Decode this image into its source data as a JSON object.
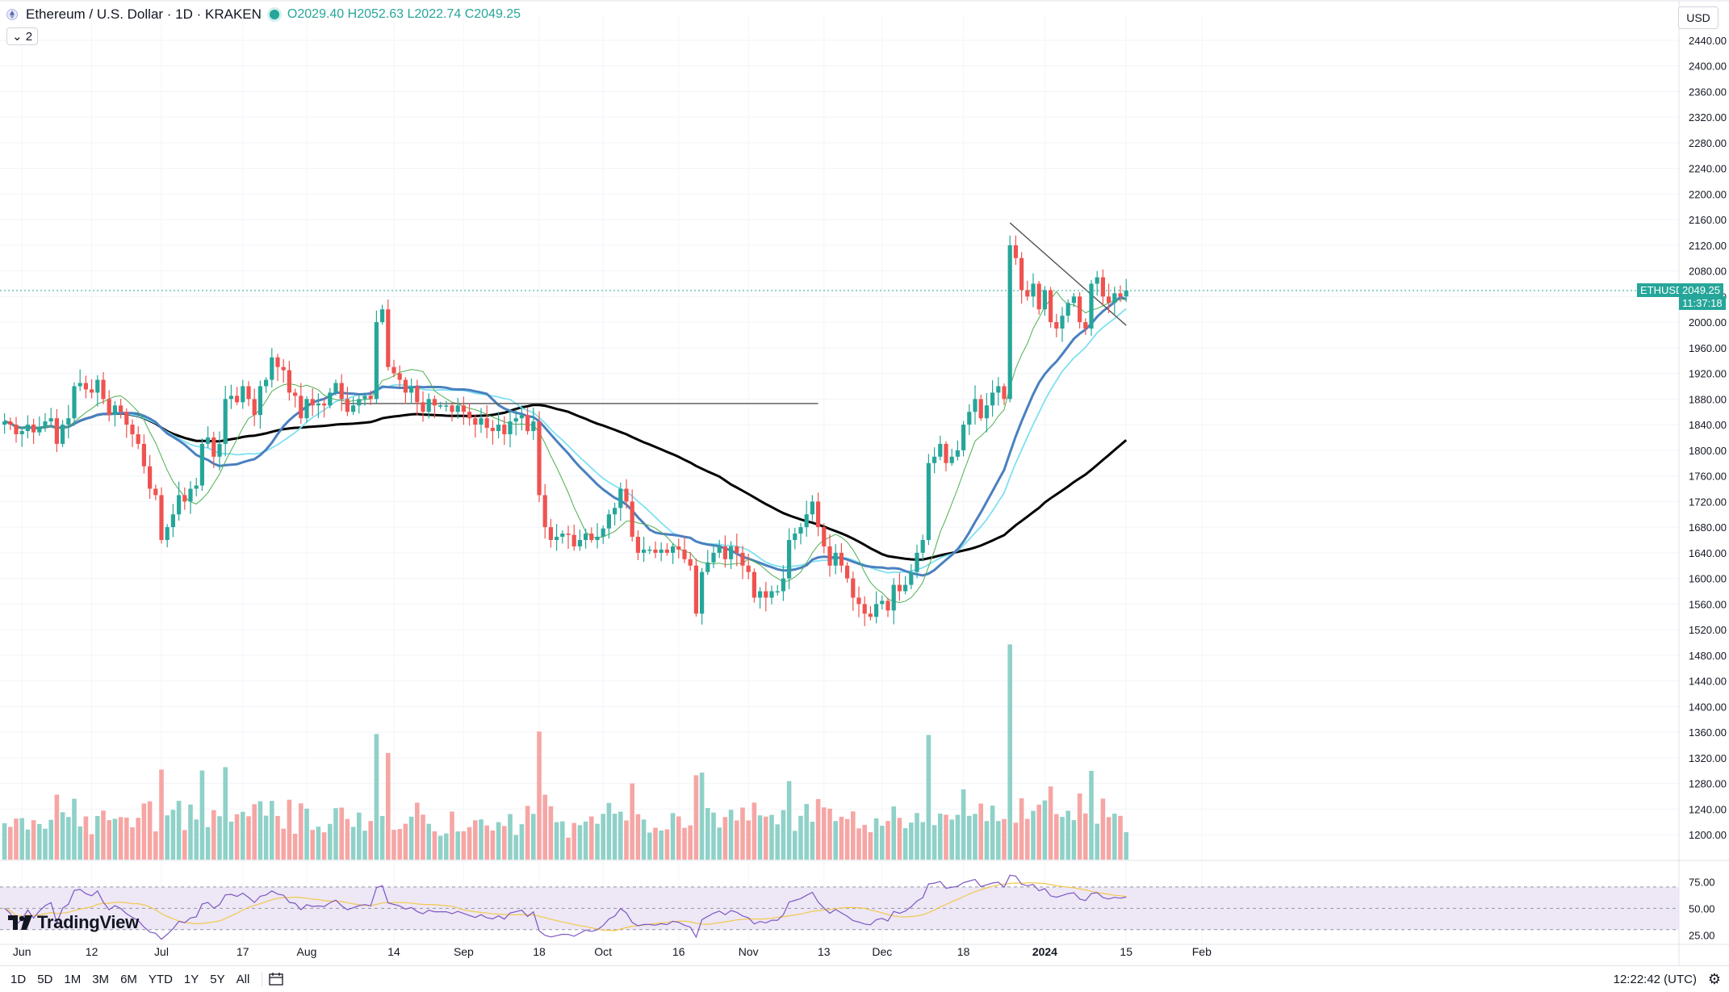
{
  "header": {
    "symbol_title": "Ethereum / U.S. Dollar · 1D · KRAKEN",
    "open": "O2029.40",
    "high": "H2052.63",
    "low": "L2022.74",
    "close": "C2049.25",
    "indicator_toggle": "2",
    "currency": "USD"
  },
  "price_tags": {
    "symbol": "ETHUSD",
    "last_price": "2049.25",
    "countdown": "11:37:18"
  },
  "bottom_bar": {
    "ranges": [
      "1D",
      "5D",
      "1M",
      "3M",
      "6M",
      "YTD",
      "1Y",
      "5Y",
      "All"
    ],
    "clock": "12:22:42 (UTC)"
  },
  "logo": "TradingView",
  "colors": {
    "up": "#26a69a",
    "down": "#ef5350",
    "vol_up": "#8fd1c8",
    "vol_down": "#f5a6a4",
    "ma_fast": "#4caf50",
    "ma_mid": "#4a80c0",
    "ma_cyan": "#7fe0f0",
    "ma_slow": "#000000",
    "rsi": "#7e57c2",
    "rsi_ma": "#f2c94c",
    "rsi_band": "#ede7f6"
  },
  "chart_data": [
    {
      "type": "candlestick",
      "symbol": "ETHUSD",
      "interval": "1D",
      "y_axis_ticks": [
        1200,
        1240,
        1280,
        1320,
        1360,
        1400,
        1440,
        1480,
        1520,
        1560,
        1600,
        1640,
        1680,
        1720,
        1760,
        1800,
        1840,
        1880,
        1920,
        1960,
        2000,
        2040,
        2080,
        2120,
        2160,
        2200,
        2240,
        2280,
        2320,
        2360,
        2400,
        2440
      ],
      "y_axis_labels": [
        "1200.00",
        "1240.00",
        "1280.00",
        "1320.00",
        "1360.00",
        "1400.00",
        "1440.00",
        "1480.00",
        "1520.00",
        "1560.00",
        "1600.00",
        "1640.00",
        "1680.00",
        "1720.00",
        "1760.00",
        "1800.00",
        "1840.00",
        "1880.00",
        "1920.00",
        "1960.00",
        "2000.00",
        "2040.00",
        "2080.00",
        "2120.00",
        "2160.00",
        "2200.00",
        "2240.00",
        "2280.00",
        "2320.00",
        "2360.00",
        "2400.00",
        "2440.00"
      ],
      "ylim": [
        1180,
        2465
      ],
      "x_axis_labels": [
        "Jun",
        "12",
        "Jul",
        "17",
        "Aug",
        "14",
        "Sep",
        "18",
        "Oct",
        "16",
        "Nov",
        "13",
        "Dec",
        "18",
        "2024",
        "15",
        "Feb"
      ],
      "x_axis_label_bars": [
        3,
        15,
        27,
        41,
        52,
        67,
        79,
        92,
        103,
        116,
        128,
        141,
        151,
        165,
        179,
        193,
        206
      ],
      "last_price": 2049.25,
      "close": [
        1845,
        1840,
        1825,
        1830,
        1840,
        1828,
        1837,
        1845,
        1850,
        1810,
        1840,
        1850,
        1900,
        1905,
        1895,
        1890,
        1910,
        1880,
        1855,
        1870,
        1860,
        1840,
        1825,
        1810,
        1775,
        1740,
        1730,
        1660,
        1680,
        1700,
        1730,
        1720,
        1740,
        1745,
        1810,
        1820,
        1790,
        1810,
        1880,
        1885,
        1875,
        1900,
        1880,
        1855,
        1900,
        1910,
        1945,
        1930,
        1925,
        1890,
        1885,
        1850,
        1880,
        1870,
        1873,
        1870,
        1890,
        1905,
        1880,
        1860,
        1870,
        1880,
        1885,
        1880,
        2000,
        2020,
        1930,
        1920,
        1910,
        1890,
        1900,
        1875,
        1860,
        1880,
        1870,
        1870,
        1870,
        1860,
        1870,
        1860,
        1850,
        1840,
        1850,
        1835,
        1830,
        1840,
        1825,
        1845,
        1850,
        1855,
        1830,
        1845,
        1730,
        1680,
        1660,
        1665,
        1670,
        1668,
        1650,
        1660,
        1670,
        1660,
        1665,
        1678,
        1700,
        1710,
        1740,
        1720,
        1665,
        1640,
        1645,
        1645,
        1640,
        1645,
        1640,
        1650,
        1645,
        1630,
        1620,
        1545,
        1610,
        1625,
        1640,
        1650,
        1630,
        1650,
        1640,
        1620,
        1610,
        1570,
        1580,
        1570,
        1580,
        1580,
        1600,
        1660,
        1670,
        1680,
        1700,
        1720,
        1680,
        1650,
        1620,
        1640,
        1620,
        1600,
        1570,
        1560,
        1545,
        1540,
        1560,
        1565,
        1550,
        1590,
        1580,
        1590,
        1610,
        1640,
        1660,
        1780,
        1790,
        1810,
        1780,
        1790,
        1800,
        1840,
        1860,
        1880,
        1850,
        1870,
        1890,
        1900,
        1880,
        2120,
        2100,
        2050,
        2040,
        2060,
        2020,
        2050,
        2000,
        1990,
        2010,
        2030,
        2040,
        2000,
        1990,
        2060,
        2070,
        2040,
        2030,
        2045,
        2040,
        2049.25
      ]
    },
    {
      "type": "bar",
      "name": "Volume",
      "relative_scale": true
    },
    {
      "type": "line",
      "name": "RSI",
      "y_axis_ticks": [
        25,
        50,
        75
      ],
      "y_axis_labels": [
        "25.00",
        "50.00",
        "75.00"
      ],
      "ylim": [
        20,
        82
      ],
      "bands": [
        30,
        50,
        70
      ]
    }
  ]
}
